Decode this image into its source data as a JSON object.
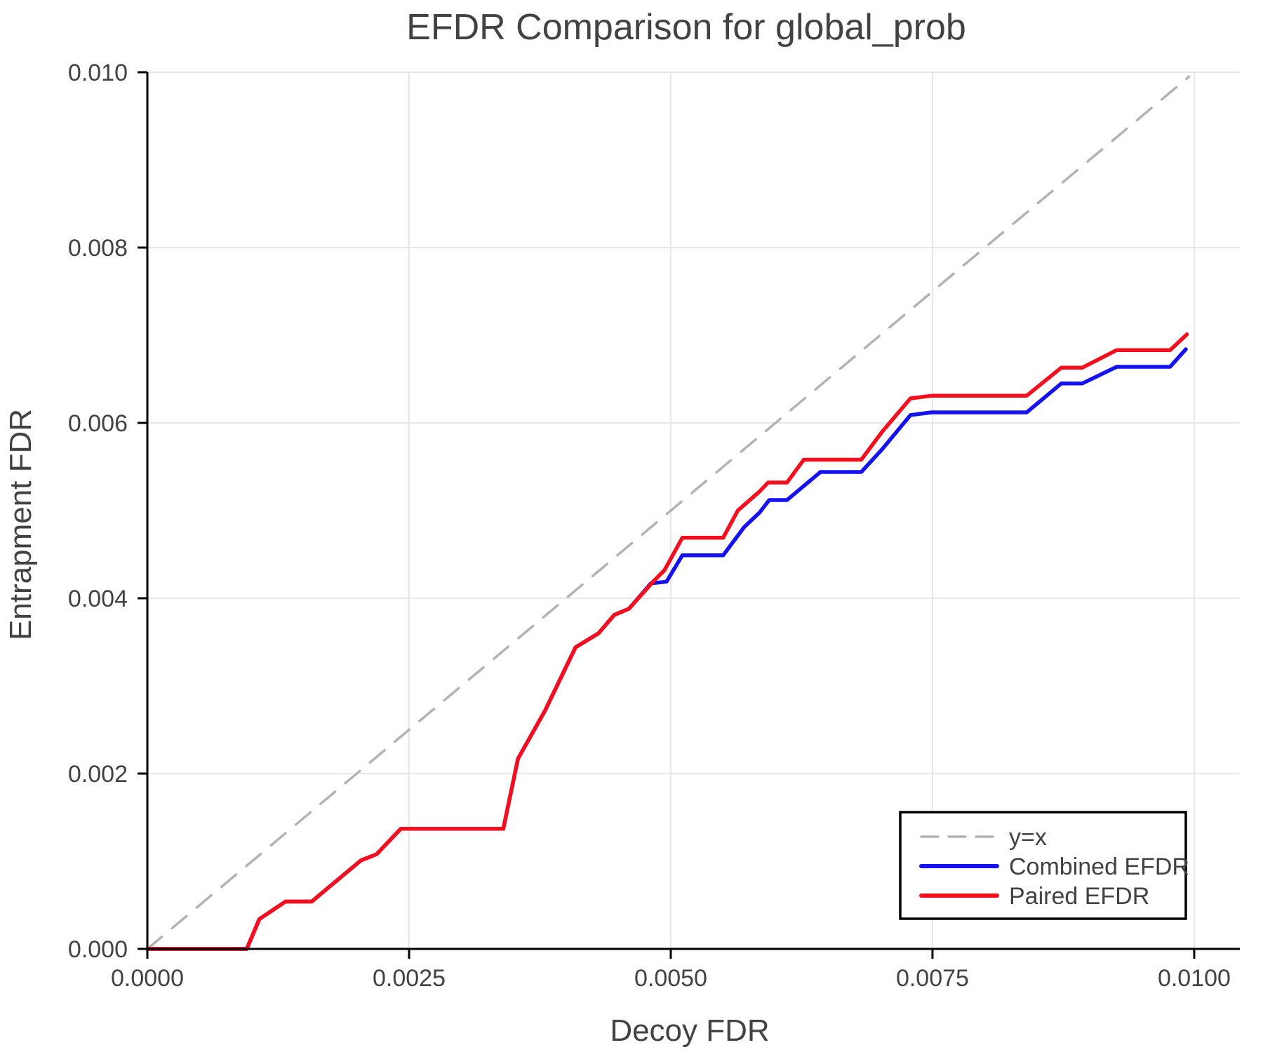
{
  "title": "EFDR Comparison for global_prob",
  "axes": {
    "x_label": "Decoy FDR",
    "y_label": "Entrapment FDR",
    "x_ticks": {
      "values": [
        0.0,
        0.0025,
        0.005,
        0.0075,
        0.01
      ],
      "labels": [
        "0.0000",
        "0.0025",
        "0.0050",
        "0.0075",
        "0.0100"
      ]
    },
    "y_ticks": {
      "values": [
        0.0,
        0.002,
        0.004,
        0.006,
        0.008,
        0.01
      ],
      "labels": [
        "0.000",
        "0.002",
        "0.004",
        "0.006",
        "0.008",
        "0.010"
      ]
    }
  },
  "legend": {
    "entries": [
      {
        "label": "y=x",
        "color": "#b3b3b3",
        "style": "dashed"
      },
      {
        "label": "Combined EFDR",
        "color": "#1512f0",
        "style": "solid"
      },
      {
        "label": "Paired EFDR",
        "color": "#f40f1f",
        "style": "solid"
      }
    ],
    "position": "lower right"
  },
  "colors": {
    "reference": "#b3b3b3",
    "combined": "#1512f0",
    "paired": "#f40f1f",
    "grid": "#e7e7e7",
    "spine": "#000000",
    "text": "#424242"
  },
  "chart_data": {
    "type": "line",
    "title": "EFDR Comparison for global_prob",
    "xlabel": "Decoy FDR",
    "ylabel": "Entrapment FDR",
    "xlim": [
      0.0,
      0.010436
    ],
    "ylim": [
      0.0,
      0.01
    ],
    "grid": true,
    "legend_position": "lower right",
    "series": [
      {
        "name": "y=x",
        "color": "#b3b3b3",
        "dashed": true,
        "points": [
          [
            0.0,
            0.0
          ],
          [
            0.00995,
            0.00995
          ]
        ]
      },
      {
        "name": "Combined EFDR",
        "color": "#1512f0",
        "dashed": false,
        "points": [
          [
            0.0,
            0.0
          ],
          [
            0.00095,
            0.0
          ],
          [
            0.00107,
            0.00034
          ],
          [
            0.00132,
            0.00054
          ],
          [
            0.00157,
            0.00054
          ],
          [
            0.00204,
            0.00101
          ],
          [
            0.00219,
            0.00108
          ],
          [
            0.00242,
            0.00137
          ],
          [
            0.0034,
            0.00137
          ],
          [
            0.00354,
            0.00217
          ],
          [
            0.0038,
            0.00272
          ],
          [
            0.00409,
            0.00344
          ],
          [
            0.00431,
            0.0036
          ],
          [
            0.00446,
            0.00381
          ],
          [
            0.0046,
            0.00388
          ],
          [
            0.00481,
            0.00417
          ],
          [
            0.00496,
            0.00419
          ],
          [
            0.00511,
            0.00449
          ],
          [
            0.0055,
            0.00449
          ],
          [
            0.0057,
            0.00481
          ],
          [
            0.00585,
            0.00498
          ],
          [
            0.00594,
            0.00512
          ],
          [
            0.00611,
            0.00512
          ],
          [
            0.00643,
            0.00544
          ],
          [
            0.00682,
            0.00544
          ],
          [
            0.00702,
            0.0057
          ],
          [
            0.00729,
            0.00609
          ],
          [
            0.00749,
            0.00612
          ],
          [
            0.0084,
            0.00612
          ],
          [
            0.00873,
            0.00645
          ],
          [
            0.00893,
            0.00645
          ],
          [
            0.00926,
            0.00664
          ],
          [
            0.00977,
            0.00664
          ],
          [
            0.00992,
            0.00684
          ]
        ]
      },
      {
        "name": "Paired EFDR",
        "color": "#f40f1f",
        "dashed": false,
        "points": [
          [
            0.0,
            0.0
          ],
          [
            0.00095,
            0.0
          ],
          [
            0.00107,
            0.00034
          ],
          [
            0.00132,
            0.00054
          ],
          [
            0.00157,
            0.00054
          ],
          [
            0.00204,
            0.00101
          ],
          [
            0.00219,
            0.00108
          ],
          [
            0.00242,
            0.00137
          ],
          [
            0.0034,
            0.00137
          ],
          [
            0.00354,
            0.00217
          ],
          [
            0.0038,
            0.00272
          ],
          [
            0.00409,
            0.00344
          ],
          [
            0.00431,
            0.0036
          ],
          [
            0.00446,
            0.00381
          ],
          [
            0.0046,
            0.00388
          ],
          [
            0.00484,
            0.0042
          ],
          [
            0.00494,
            0.00432
          ],
          [
            0.00511,
            0.00469
          ],
          [
            0.0055,
            0.00469
          ],
          [
            0.00564,
            0.005
          ],
          [
            0.00585,
            0.00522
          ],
          [
            0.00593,
            0.00532
          ],
          [
            0.00611,
            0.00532
          ],
          [
            0.00627,
            0.00558
          ],
          [
            0.00682,
            0.00558
          ],
          [
            0.00702,
            0.0059
          ],
          [
            0.00729,
            0.00628
          ],
          [
            0.00749,
            0.00631
          ],
          [
            0.0084,
            0.00631
          ],
          [
            0.00873,
            0.00663
          ],
          [
            0.00893,
            0.00663
          ],
          [
            0.00926,
            0.00683
          ],
          [
            0.00977,
            0.00683
          ],
          [
            0.00993,
            0.00701
          ]
        ]
      }
    ]
  }
}
